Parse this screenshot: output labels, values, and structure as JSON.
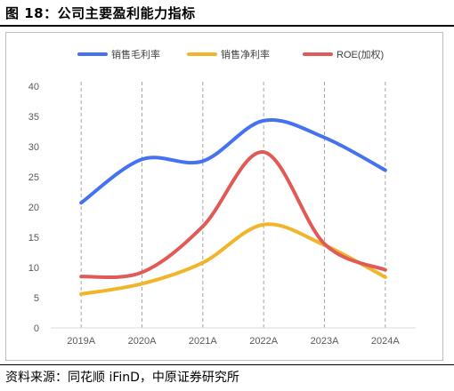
{
  "figure": {
    "title": "图 18：公司主要盈利能力指标",
    "source": "资料来源：同花顺 iFinD，中原证券研究所"
  },
  "chart_data": {
    "type": "line",
    "categories": [
      "2019A",
      "2020A",
      "2021A",
      "2022A",
      "2023A",
      "2024A"
    ],
    "series": [
      {
        "name": "销售毛利率",
        "color": "#4472f0",
        "values": [
          20.7,
          27.9,
          27.6,
          34.3,
          31.5,
          26.1
        ]
      },
      {
        "name": "销售净利率",
        "color": "#f0b52b",
        "values": [
          5.6,
          7.3,
          10.8,
          17.1,
          13.7,
          8.4
        ]
      },
      {
        "name": "ROE(加权)",
        "color": "#e05a57",
        "values": [
          8.5,
          9.2,
          16.8,
          29.1,
          13.9,
          9.6
        ]
      }
    ],
    "ylim": [
      0,
      40
    ],
    "yticks": [
      0,
      5,
      10,
      15,
      20,
      25,
      30,
      35,
      40
    ],
    "grid": "vertical dashed lines at categories",
    "legend": "top-center"
  }
}
